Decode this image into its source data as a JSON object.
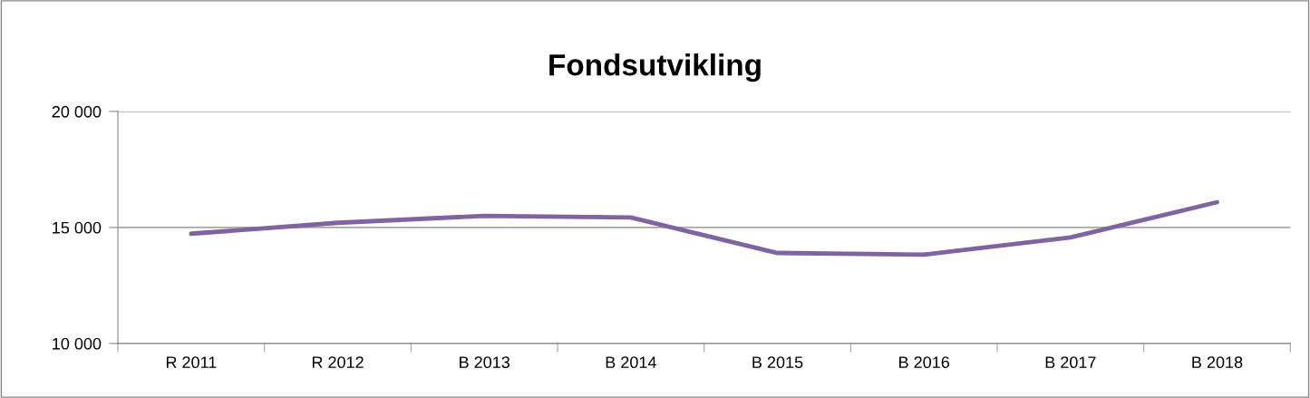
{
  "chart_data": {
    "type": "line",
    "title": "Fondsutvikling",
    "categories": [
      "R 2011",
      "R 2012",
      "B 2013",
      "B 2014",
      "B 2015",
      "B 2016",
      "B 2017",
      "B 2018"
    ],
    "series": [
      {
        "color": "#8064a2",
        "values": [
          14730,
          15200,
          15500,
          15430,
          13900,
          13830,
          14570,
          16090
        ]
      }
    ],
    "ylim": [
      10000,
      20000
    ],
    "yticks": [
      {
        "value": 10000,
        "label": "10 000"
      },
      {
        "value": 15000,
        "label": "15 000"
      },
      {
        "value": 20000,
        "label": "20 000"
      }
    ],
    "grid": "y",
    "marker": "none",
    "line_style": "solid"
  }
}
